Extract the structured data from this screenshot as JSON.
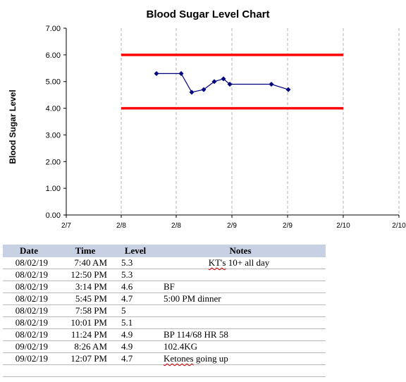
{
  "chart_data": {
    "type": "line",
    "title": "Blood Sugar Level Chart",
    "xlabel": "",
    "ylabel": "Blood Sugar Level",
    "ylim": [
      0,
      7
    ],
    "y_ticks": [
      "0.00",
      "1.00",
      "2.00",
      "3.00",
      "4.00",
      "5.00",
      "6.00",
      "7.00"
    ],
    "x_tick_labels": [
      "2/7",
      "2/8",
      "2/8",
      "2/9",
      "2/9",
      "2/10",
      "2/10"
    ],
    "grid": "vertical dashed",
    "series": [
      {
        "type": "line",
        "color": "#000080",
        "marker": "diamond",
        "values": [
          5.3,
          5.3,
          4.6,
          4.7,
          5.0,
          5.1,
          4.9,
          4.9,
          4.7
        ]
      },
      {
        "type": "reference-line",
        "color": "#ff0000",
        "value": 6.0
      },
      {
        "type": "reference-line",
        "color": "#ff0000",
        "value": 4.0
      }
    ]
  },
  "table": {
    "headers": {
      "date": "Date",
      "time": "Time",
      "level": "Level",
      "notes": "Notes"
    },
    "rows": [
      {
        "date": "08/02/19",
        "time": "7:40 AM",
        "level": "5.3",
        "notes": "KT's 10+ all day",
        "notes_spell": "KT's"
      },
      {
        "date": "08/02/19",
        "time": "12:50 PM",
        "level": "5.3",
        "notes": ""
      },
      {
        "date": "08/02/19",
        "time": "3:14 PM",
        "level": "4.6",
        "notes": "BF"
      },
      {
        "date": "08/02/19",
        "time": "5:45 PM",
        "level": "4.7",
        "notes": "5:00 PM dinner"
      },
      {
        "date": "08/02/19",
        "time": "7:58 PM",
        "level": "5",
        "notes": ""
      },
      {
        "date": "08/02/19",
        "time": "10:01 PM",
        "level": "5.1",
        "notes": ""
      },
      {
        "date": "08/02/19",
        "time": "11:24 PM",
        "level": "4.9",
        "notes": "BP 114/68 HR 58"
      },
      {
        "date": "09/02/19",
        "time": "8:26 AM",
        "level": "4.9",
        "notes": "102.4KG"
      },
      {
        "date": "09/02/19",
        "time": "12:07 PM",
        "level": "4.7",
        "notes": "Ketones going up"
      }
    ]
  }
}
